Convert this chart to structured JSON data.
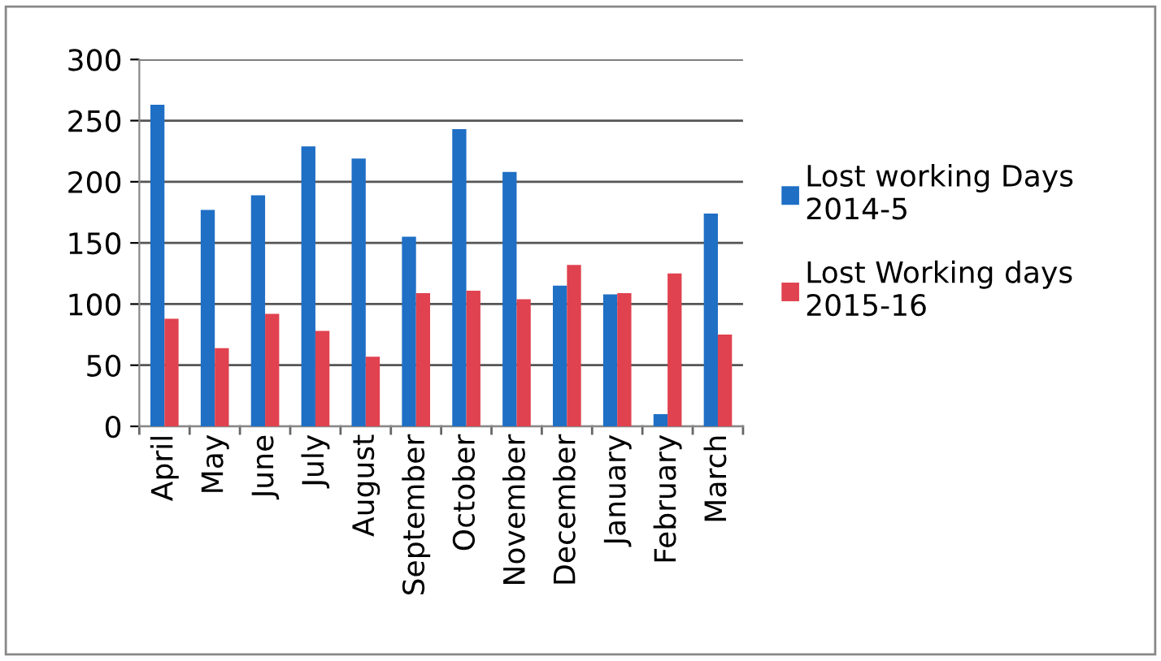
{
  "chart_data": {
    "type": "bar",
    "categories": [
      "April",
      "May",
      "June",
      "July",
      "August",
      "September",
      "October",
      "November",
      "December",
      "January",
      "February",
      "March"
    ],
    "series": [
      {
        "name": "Lost working Days 2014-5",
        "color": "#1f6fc5",
        "values": [
          263,
          177,
          189,
          229,
          219,
          155,
          243,
          208,
          115,
          108,
          10,
          174
        ]
      },
      {
        "name": "Lost Working days 2015-16",
        "color": "#e0424f",
        "values": [
          88,
          64,
          92,
          78,
          57,
          109,
          111,
          104,
          132,
          109,
          125,
          75
        ]
      }
    ],
    "ylim": [
      0,
      300
    ],
    "yticks": [
      0,
      50,
      100,
      150,
      200,
      250,
      300
    ],
    "grid": "y",
    "legend": "right"
  }
}
